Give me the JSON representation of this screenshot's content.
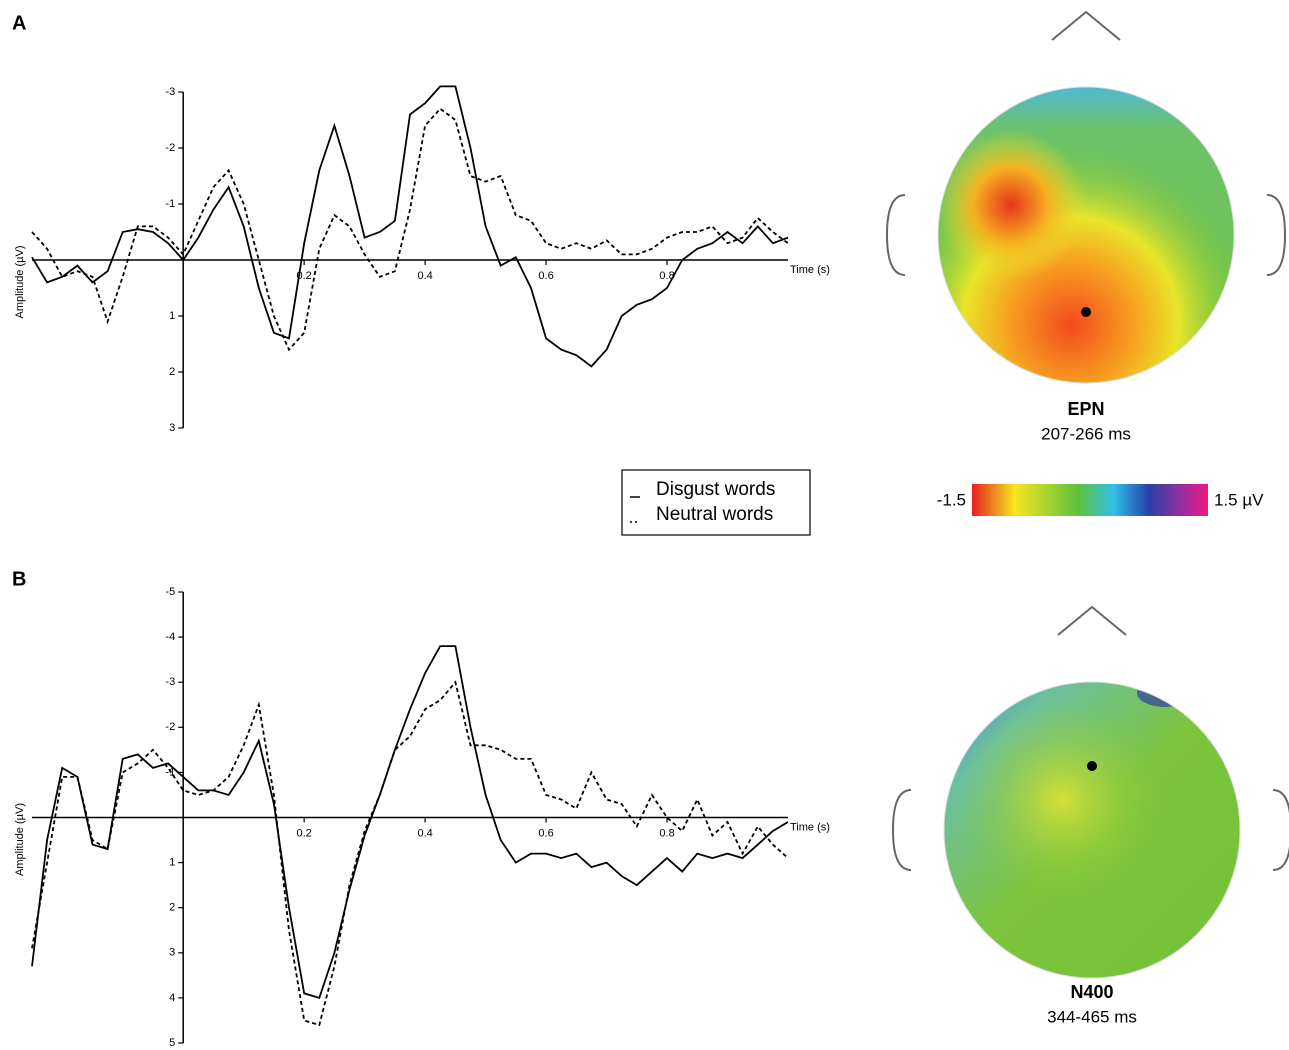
{
  "chart_data": [
    {
      "type": "line",
      "panel": "A",
      "ylabel": "Amplitude (µV)",
      "xlabel": "Time (s)",
      "xlim": [
        -0.25,
        1.0
      ],
      "xticks": [
        0.2,
        0.4,
        0.6,
        0.8
      ],
      "ylim": [
        3,
        -3
      ],
      "yticks": [
        -3,
        -2,
        -1,
        1,
        2,
        3
      ],
      "x": [
        -0.25,
        -0.225,
        -0.2,
        -0.175,
        -0.15,
        -0.125,
        -0.1,
        -0.075,
        -0.05,
        -0.025,
        0,
        0.025,
        0.05,
        0.075,
        0.1,
        0.125,
        0.15,
        0.175,
        0.2,
        0.225,
        0.25,
        0.275,
        0.3,
        0.325,
        0.35,
        0.375,
        0.4,
        0.425,
        0.45,
        0.475,
        0.5,
        0.525,
        0.55,
        0.575,
        0.6,
        0.625,
        0.65,
        0.675,
        0.7,
        0.725,
        0.75,
        0.775,
        0.8,
        0.825,
        0.85,
        0.875,
        0.9,
        0.925,
        0.95,
        0.975,
        1.0
      ],
      "series": [
        {
          "name": "Disgust words",
          "color": "#000000",
          "style": "solid",
          "values": [
            -0.05,
            0.4,
            0.3,
            0.1,
            0.4,
            0.2,
            -0.5,
            -0.55,
            -0.5,
            -0.3,
            0,
            -0.4,
            -0.9,
            -1.3,
            -0.6,
            0.5,
            1.3,
            1.4,
            -0.3,
            -1.6,
            -2.4,
            -1.5,
            -0.4,
            -0.5,
            -0.7,
            -2.6,
            -2.8,
            -3.1,
            -3.1,
            -2.0,
            -0.6,
            0.1,
            -0.05,
            0.5,
            1.4,
            1.6,
            1.7,
            1.9,
            1.6,
            1.0,
            0.8,
            0.7,
            0.5,
            0.0,
            -0.2,
            -0.3,
            -0.5,
            -0.3,
            -0.6,
            -0.3,
            -0.4
          ]
        },
        {
          "name": "Neutral words",
          "color": "#000000",
          "style": "dashed",
          "values": [
            -0.5,
            -0.2,
            0.3,
            0.2,
            0.3,
            1.1,
            0.3,
            -0.6,
            -0.6,
            -0.4,
            -0.1,
            -0.7,
            -1.3,
            -1.6,
            -1.0,
            0.0,
            1.0,
            1.6,
            1.3,
            -0.2,
            -0.8,
            -0.6,
            -0.1,
            0.3,
            0.2,
            -0.9,
            -2.4,
            -2.7,
            -2.5,
            -1.5,
            -1.4,
            -1.5,
            -0.8,
            -0.7,
            -0.3,
            -0.2,
            -0.3,
            -0.2,
            -0.35,
            -0.1,
            -0.1,
            -0.2,
            -0.4,
            -0.5,
            -0.5,
            -0.6,
            -0.3,
            -0.4,
            -0.75,
            -0.5,
            -0.3
          ]
        }
      ]
    },
    {
      "type": "line",
      "panel": "B",
      "ylabel": "Amplitude (µV)",
      "xlabel": "Time (s)",
      "xlim": [
        -0.25,
        1.0
      ],
      "xticks": [
        0.2,
        0.4,
        0.6,
        0.8
      ],
      "ylim": [
        5,
        -5
      ],
      "yticks": [
        -5,
        -4,
        -3,
        -2,
        -1,
        1,
        2,
        3,
        4,
        5
      ],
      "x": [
        -0.25,
        -0.225,
        -0.2,
        -0.175,
        -0.15,
        -0.125,
        -0.1,
        -0.075,
        -0.05,
        -0.025,
        0,
        0.025,
        0.05,
        0.075,
        0.1,
        0.125,
        0.15,
        0.175,
        0.2,
        0.225,
        0.25,
        0.275,
        0.3,
        0.325,
        0.35,
        0.375,
        0.4,
        0.425,
        0.45,
        0.475,
        0.5,
        0.525,
        0.55,
        0.575,
        0.6,
        0.625,
        0.65,
        0.675,
        0.7,
        0.725,
        0.75,
        0.775,
        0.8,
        0.825,
        0.85,
        0.875,
        0.9,
        0.925,
        0.95,
        0.975,
        1.0
      ],
      "series": [
        {
          "color": "#000000",
          "style": "solid",
          "values": [
            3.3,
            0.5,
            -1.1,
            -0.9,
            0.6,
            0.7,
            -1.3,
            -1.4,
            -1.1,
            -1.2,
            -0.9,
            -0.6,
            -0.6,
            -0.5,
            -1.0,
            -1.7,
            -0.3,
            2.0,
            3.9,
            4.0,
            3.0,
            1.6,
            0.4,
            -0.5,
            -1.5,
            -2.4,
            -3.2,
            -3.8,
            -3.8,
            -2.0,
            -0.5,
            0.5,
            1.0,
            0.8,
            0.8,
            0.9,
            0.8,
            1.1,
            1.0,
            1.3,
            1.5,
            1.2,
            0.9,
            1.2,
            0.8,
            0.9,
            0.8,
            0.9,
            0.6,
            0.3,
            0.1
          ]
        },
        {
          "color": "#000000",
          "style": "dashed",
          "values": [
            2.9,
            1.0,
            -0.9,
            -0.9,
            0.5,
            0.7,
            -1.0,
            -1.2,
            -1.5,
            -1.1,
            -0.6,
            -0.5,
            -0.6,
            -0.9,
            -1.6,
            -2.5,
            -0.5,
            2.5,
            4.5,
            4.6,
            3.3,
            1.5,
            0.3,
            -0.5,
            -1.5,
            -1.8,
            -2.4,
            -2.6,
            -3.0,
            -1.6,
            -1.6,
            -1.5,
            -1.3,
            -1.3,
            -0.5,
            -0.4,
            -0.2,
            -1.0,
            -0.4,
            -0.3,
            0.2,
            -0.5,
            0.0,
            0.3,
            -0.4,
            0.4,
            0.1,
            0.8,
            0.2,
            0.6,
            0.9
          ]
        }
      ]
    }
  ],
  "topomaps": [
    {
      "component": "EPN",
      "window": "207-266 ms"
    },
    {
      "component": "N400",
      "window": "344-465 ms"
    }
  ],
  "colorbar": {
    "ticks": [
      -1.5,
      {
        "value": 1.5,
        "label": "1.5 µV"
      }
    ]
  }
}
